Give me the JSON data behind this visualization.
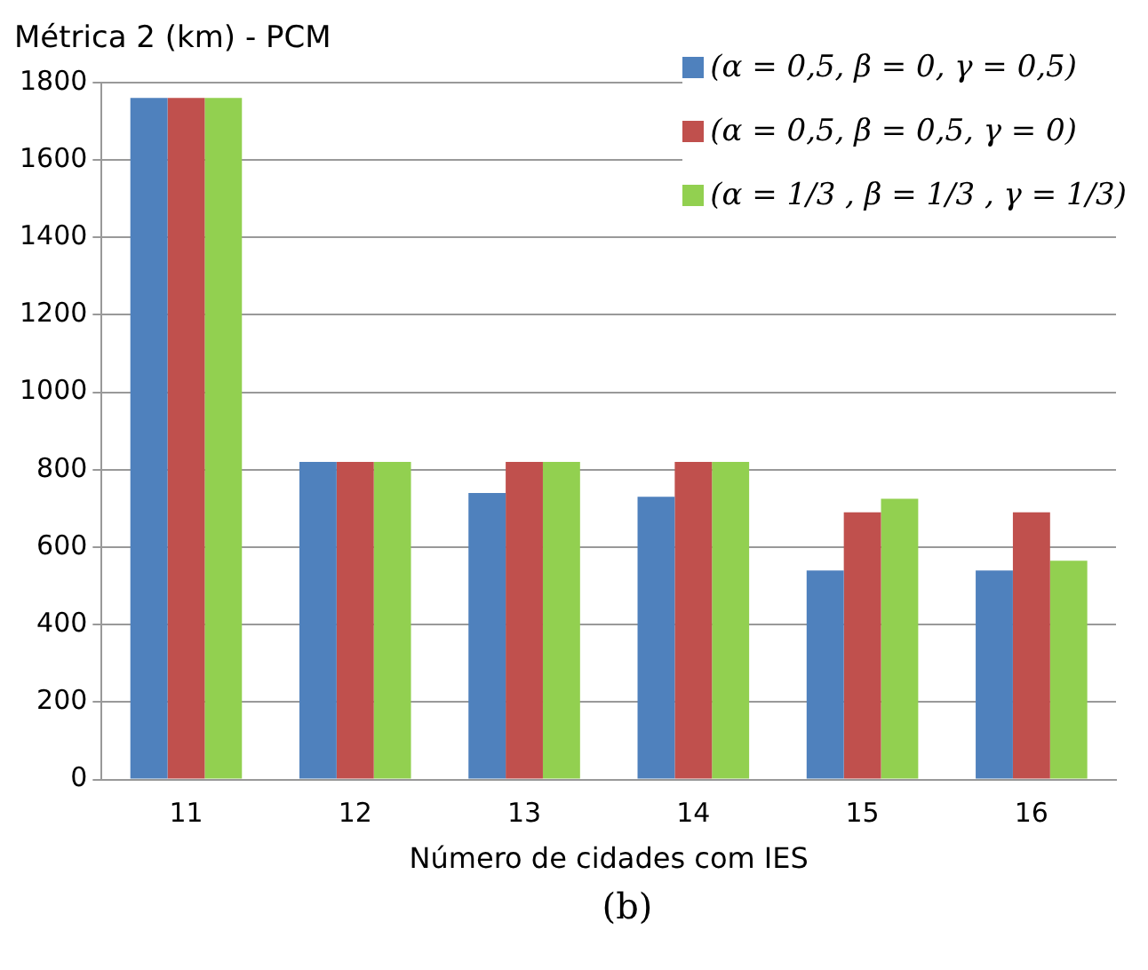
{
  "chart_data": {
    "type": "bar",
    "title": "Métrica 2 (km) - PCM",
    "xlabel": "Número de cidades com IES",
    "annotations": [
      "(b)"
    ],
    "categories": [
      "11",
      "12",
      "13",
      "14",
      "15",
      "16"
    ],
    "series": [
      {
        "name": "(α = 0,5, β = 0, γ = 0,5)",
        "color": "#4f81bd",
        "values": [
          1760,
          820,
          740,
          730,
          540,
          540
        ]
      },
      {
        "name": "(α = 0,5, β = 0,5, γ = 0)",
        "color": "#c0504d",
        "values": [
          1760,
          820,
          820,
          820,
          690,
          690
        ]
      },
      {
        "name": "(α = 1/3 , β = 1/3 , γ = 1/3)",
        "color": "#92d050",
        "values": [
          1760,
          820,
          820,
          820,
          725,
          565
        ]
      }
    ],
    "ylim": [
      0,
      1800
    ],
    "yticks": [
      0,
      200,
      400,
      600,
      800,
      1000,
      1200,
      1400,
      1600,
      1800
    ],
    "grid": "y",
    "legend": "top right"
  }
}
